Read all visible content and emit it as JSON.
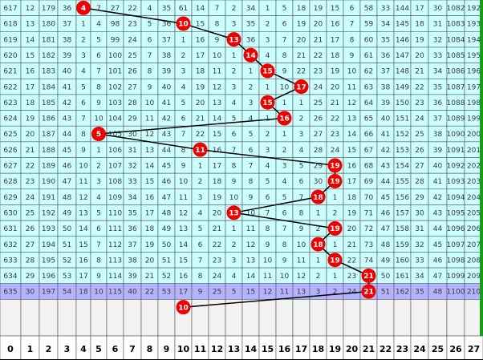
{
  "colors": {
    "cell_bg": "#ccffff",
    "current_row_bg": "#b3b3ff",
    "empty_row_bg": "#f2f2f2",
    "index_row_bg": "#ffffff",
    "ball": "#ee0000",
    "ball_text": "#ffffff",
    "grid_line": "#555555",
    "right_border": "#10a010"
  },
  "table": {
    "rows": [
      [
        "617",
        "12",
        "179",
        "36",
        "4",
        "7",
        "27",
        "22",
        "4",
        "35",
        "61",
        "14",
        "7",
        "2",
        "34",
        "1",
        "5",
        "18",
        "19",
        "15",
        "6",
        "58",
        "33",
        "144",
        "17",
        "30",
        "1082",
        "192"
      ],
      [
        "618",
        "13",
        "180",
        "37",
        "1",
        "4",
        "98",
        "23",
        "5",
        "36",
        "10",
        "15",
        "8",
        "3",
        "35",
        "2",
        "6",
        "19",
        "20",
        "16",
        "7",
        "59",
        "34",
        "145",
        "18",
        "31",
        "1083",
        "193"
      ],
      [
        "619",
        "14",
        "181",
        "38",
        "2",
        "5",
        "99",
        "24",
        "6",
        "37",
        "1",
        "16",
        "9",
        "13",
        "36",
        "3",
        "7",
        "20",
        "21",
        "17",
        "8",
        "60",
        "35",
        "146",
        "19",
        "32",
        "1084",
        "194"
      ],
      [
        "620",
        "15",
        "182",
        "39",
        "3",
        "6",
        "100",
        "25",
        "7",
        "38",
        "2",
        "17",
        "10",
        "1",
        "14",
        "4",
        "8",
        "21",
        "22",
        "18",
        "9",
        "61",
        "36",
        "147",
        "20",
        "33",
        "1085",
        "195"
      ],
      [
        "621",
        "16",
        "183",
        "40",
        "4",
        "7",
        "101",
        "26",
        "8",
        "39",
        "3",
        "18",
        "11",
        "2",
        "1",
        "15",
        "9",
        "22",
        "23",
        "19",
        "10",
        "62",
        "37",
        "148",
        "21",
        "34",
        "1086",
        "196"
      ],
      [
        "622",
        "17",
        "184",
        "41",
        "5",
        "8",
        "102",
        "27",
        "9",
        "40",
        "4",
        "19",
        "12",
        "3",
        "2",
        "1",
        "10",
        "17",
        "24",
        "20",
        "11",
        "63",
        "38",
        "149",
        "22",
        "35",
        "1087",
        "197"
      ],
      [
        "623",
        "18",
        "185",
        "42",
        "6",
        "9",
        "103",
        "28",
        "10",
        "41",
        "5",
        "20",
        "13",
        "4",
        "3",
        "15",
        "1",
        "1",
        "25",
        "21",
        "12",
        "64",
        "39",
        "150",
        "23",
        "36",
        "1088",
        "198"
      ],
      [
        "624",
        "19",
        "186",
        "43",
        "7",
        "10",
        "104",
        "29",
        "11",
        "42",
        "6",
        "21",
        "14",
        "5",
        "4",
        "1",
        "16",
        "2",
        "26",
        "22",
        "13",
        "65",
        "40",
        "151",
        "24",
        "37",
        "1089",
        "199"
      ],
      [
        "625",
        "20",
        "187",
        "44",
        "8",
        "5",
        "105",
        "30",
        "12",
        "43",
        "7",
        "22",
        "15",
        "6",
        "5",
        "2",
        "1",
        "3",
        "27",
        "23",
        "14",
        "66",
        "41",
        "152",
        "25",
        "38",
        "1090",
        "200"
      ],
      [
        "626",
        "21",
        "188",
        "45",
        "9",
        "1",
        "106",
        "31",
        "13",
        "44",
        "8",
        "11",
        "16",
        "7",
        "6",
        "3",
        "2",
        "4",
        "28",
        "24",
        "15",
        "67",
        "42",
        "153",
        "26",
        "39",
        "1091",
        "201"
      ],
      [
        "627",
        "22",
        "189",
        "46",
        "10",
        "2",
        "107",
        "32",
        "14",
        "45",
        "9",
        "1",
        "17",
        "8",
        "7",
        "4",
        "3",
        "5",
        "29",
        "19",
        "16",
        "68",
        "43",
        "154",
        "27",
        "40",
        "1092",
        "202"
      ],
      [
        "628",
        "23",
        "190",
        "47",
        "11",
        "3",
        "108",
        "33",
        "15",
        "46",
        "10",
        "2",
        "18",
        "9",
        "8",
        "5",
        "4",
        "6",
        "30",
        "19",
        "17",
        "69",
        "44",
        "155",
        "28",
        "41",
        "1093",
        "203"
      ],
      [
        "629",
        "24",
        "191",
        "48",
        "12",
        "4",
        "109",
        "34",
        "16",
        "47",
        "11",
        "3",
        "19",
        "10",
        "9",
        "6",
        "5",
        "7",
        "18",
        "1",
        "18",
        "70",
        "45",
        "156",
        "29",
        "42",
        "1094",
        "204"
      ],
      [
        "630",
        "25",
        "192",
        "49",
        "13",
        "5",
        "110",
        "35",
        "17",
        "48",
        "12",
        "4",
        "20",
        "13",
        "10",
        "7",
        "6",
        "8",
        "1",
        "2",
        "19",
        "71",
        "46",
        "157",
        "30",
        "43",
        "1095",
        "205"
      ],
      [
        "631",
        "26",
        "193",
        "50",
        "14",
        "6",
        "111",
        "36",
        "18",
        "49",
        "13",
        "5",
        "21",
        "1",
        "11",
        "8",
        "7",
        "9",
        "2",
        "19",
        "20",
        "72",
        "47",
        "158",
        "31",
        "44",
        "1096",
        "206"
      ],
      [
        "632",
        "27",
        "194",
        "51",
        "15",
        "7",
        "112",
        "37",
        "19",
        "50",
        "14",
        "6",
        "22",
        "2",
        "12",
        "9",
        "8",
        "10",
        "18",
        "1",
        "21",
        "73",
        "48",
        "159",
        "32",
        "45",
        "1097",
        "207"
      ],
      [
        "633",
        "28",
        "195",
        "52",
        "16",
        "8",
        "113",
        "38",
        "20",
        "51",
        "15",
        "7",
        "23",
        "3",
        "13",
        "10",
        "9",
        "11",
        "1",
        "19",
        "22",
        "74",
        "49",
        "160",
        "33",
        "46",
        "1098",
        "208"
      ],
      [
        "634",
        "29",
        "196",
        "53",
        "17",
        "9",
        "114",
        "39",
        "21",
        "52",
        "16",
        "8",
        "24",
        "4",
        "14",
        "11",
        "10",
        "12",
        "2",
        "1",
        "23",
        "21",
        "50",
        "161",
        "34",
        "47",
        "1099",
        "209"
      ],
      [
        "635",
        "30",
        "197",
        "54",
        "18",
        "10",
        "115",
        "40",
        "22",
        "53",
        "17",
        "9",
        "25",
        "5",
        "15",
        "12",
        "11",
        "13",
        "3",
        "2",
        "24",
        "21",
        "51",
        "162",
        "35",
        "48",
        "1100",
        "210"
      ]
    ],
    "balls": [
      {
        "row": 0,
        "col": 4,
        "label": "4"
      },
      {
        "row": 1,
        "col": 10,
        "label": "10"
      },
      {
        "row": 2,
        "col": 13,
        "label": "13"
      },
      {
        "row": 3,
        "col": 14,
        "label": "14"
      },
      {
        "row": 4,
        "col": 15,
        "label": "15"
      },
      {
        "row": 5,
        "col": 17,
        "label": "17"
      },
      {
        "row": 6,
        "col": 15,
        "label": "15"
      },
      {
        "row": 7,
        "col": 16,
        "label": "16"
      },
      {
        "row": 8,
        "col": 5,
        "label": "5"
      },
      {
        "row": 9,
        "col": 11,
        "label": "11"
      },
      {
        "row": 10,
        "col": 19,
        "label": "19"
      },
      {
        "row": 11,
        "col": 19,
        "label": "19"
      },
      {
        "row": 12,
        "col": 18,
        "label": "18"
      },
      {
        "row": 13,
        "col": 13,
        "label": "13"
      },
      {
        "row": 14,
        "col": 19,
        "label": "19"
      },
      {
        "row": 15,
        "col": 18,
        "label": "18"
      },
      {
        "row": 16,
        "col": 19,
        "label": "19"
      },
      {
        "row": 17,
        "col": 21,
        "label": "21"
      },
      {
        "row": 18,
        "col": 21,
        "label": "21"
      },
      {
        "row": 19,
        "col": 10,
        "label": "10"
      }
    ],
    "index_labels": [
      "0",
      "1",
      "2",
      "3",
      "4",
      "5",
      "6",
      "7",
      "8",
      "9",
      "10",
      "11",
      "12",
      "13",
      "14",
      "15",
      "16",
      "17",
      "18",
      "19",
      "20",
      "21",
      "22",
      "23",
      "24",
      "25",
      "26",
      "27"
    ]
  }
}
